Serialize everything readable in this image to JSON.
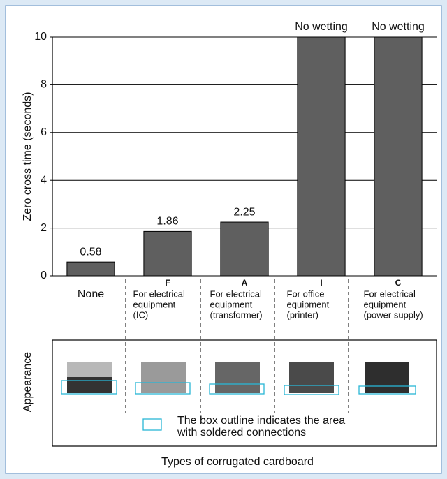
{
  "chart_data": {
    "type": "bar",
    "y_label": "Zero cross time (seconds)",
    "x_label": "Types of corrugated cardboard",
    "categories": [
      "None",
      "F",
      "A",
      "I",
      "C"
    ],
    "category_descriptions": [
      [],
      [
        "For electrical",
        "equipment",
        "(IC)"
      ],
      [
        "For electrical",
        "equipment",
        "(transformer)"
      ],
      [
        "For office",
        "equipment",
        "(printer)"
      ],
      [
        "For electrical",
        "equipment",
        "(power supply)"
      ]
    ],
    "values": [
      0.58,
      1.86,
      2.25,
      10,
      10
    ],
    "value_labels": [
      "0.58",
      "1.86",
      "2.25",
      "No wetting",
      "No wetting"
    ],
    "color": "#5f5f5f",
    "ylim": [
      0,
      10
    ],
    "yticks": [
      0,
      2,
      4,
      6,
      8,
      10
    ],
    "grid": true,
    "appearance_label": "Appearance",
    "appearance_note": [
      "The box outline indicates the area",
      "with soldered connections"
    ]
  }
}
